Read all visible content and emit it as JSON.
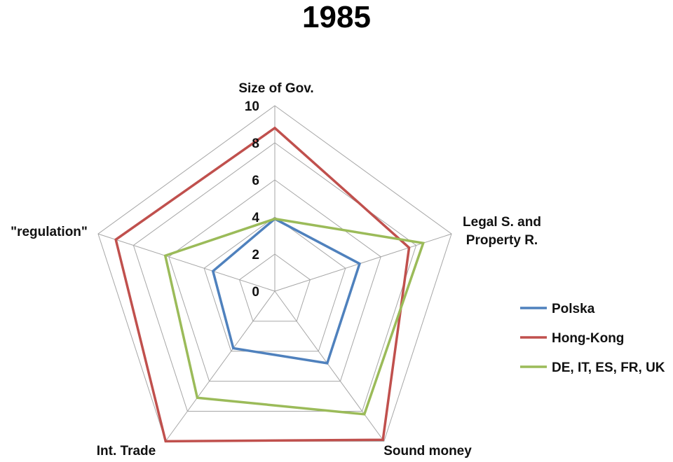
{
  "chart_data": {
    "type": "radar",
    "title": "1985",
    "axes": [
      "Size of Gov.",
      "Legal S. and Property R.",
      "Sound money",
      "Int. Trade",
      "\"regulation\""
    ],
    "axis_label_lines": [
      [
        "Size of Gov."
      ],
      [
        "Legal S. and",
        "Property R."
      ],
      [
        "Sound money"
      ],
      [
        "Int. Trade"
      ],
      [
        "\"regulation\""
      ]
    ],
    "rlim": [
      0,
      10
    ],
    "ticks": [
      0,
      2,
      4,
      6,
      8,
      10
    ],
    "grid": true,
    "legend_position": "right",
    "series": [
      {
        "name": "Polska",
        "color": "#4f81bd",
        "values": [
          3.9,
          4.8,
          4.8,
          3.8,
          3.5
        ]
      },
      {
        "name": "Hong-Kong",
        "color": "#c0504d",
        "values": [
          8.8,
          7.6,
          9.9,
          10.0,
          9.0
        ]
      },
      {
        "name": "DE, IT, ES, FR, UK",
        "color": "#9bbb59",
        "values": [
          3.9,
          8.4,
          8.2,
          7.1,
          6.2
        ]
      }
    ]
  }
}
